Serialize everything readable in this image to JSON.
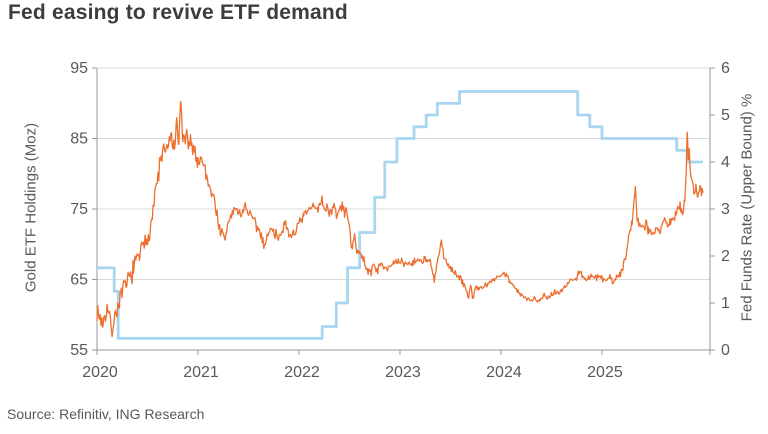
{
  "title": "Fed easing to revive ETF demand",
  "source": "Source: Refinitiv, ING Research",
  "colors": {
    "title_text": "#3d3d3d",
    "axis_text": "#595959",
    "gridline": "#d9d9d9",
    "axis_line": "#999999",
    "gold_series": "#EC6F2D",
    "fed_series": "#A8D5F0",
    "background": "#ffffff"
  },
  "chart_data": {
    "type": "line",
    "title": "Fed easing to revive ETF demand",
    "grid": "horizontal",
    "legend": "none",
    "x_axis": {
      "ticks": [
        2020,
        2021,
        2022,
        2023,
        2024,
        2025
      ],
      "range": [
        2020.0,
        2026.07
      ],
      "end_tick": true
    },
    "left_axis": {
      "label": "Gold ETF Holdings (Moz)",
      "ticks": [
        55,
        65,
        75,
        85,
        95
      ],
      "range": [
        55,
        95
      ]
    },
    "right_axis": {
      "label": "Fed Funds Rate (Upper Bound) %",
      "ticks": [
        0,
        1,
        2,
        3,
        4,
        5,
        6
      ],
      "range": [
        0,
        6
      ]
    },
    "series": [
      {
        "name": "Gold ETF Holdings (Moz)",
        "axis": "left",
        "color": "#EC6F2D",
        "style": "noisy-line",
        "points": [
          [
            2020.0,
            60.5
          ],
          [
            2020.06,
            58.8
          ],
          [
            2020.1,
            61.0
          ],
          [
            2020.15,
            57.8
          ],
          [
            2020.19,
            60.5
          ],
          [
            2020.24,
            62.8
          ],
          [
            2020.3,
            64.5
          ],
          [
            2020.36,
            66.5
          ],
          [
            2020.42,
            68.5
          ],
          [
            2020.46,
            69.5
          ],
          [
            2020.5,
            71.0
          ],
          [
            2020.54,
            73.5
          ],
          [
            2020.58,
            77.5
          ],
          [
            2020.62,
            81.0
          ],
          [
            2020.66,
            83.5
          ],
          [
            2020.7,
            83.0
          ],
          [
            2020.73,
            85.5
          ],
          [
            2020.76,
            83.5
          ],
          [
            2020.79,
            86.5
          ],
          [
            2020.81,
            84.0
          ],
          [
            2020.83,
            90.5
          ],
          [
            2020.85,
            84.5
          ],
          [
            2020.88,
            85.5
          ],
          [
            2020.91,
            83.5
          ],
          [
            2020.94,
            84.5
          ],
          [
            2020.97,
            83.0
          ],
          [
            2021.0,
            81.5
          ],
          [
            2021.03,
            82.5
          ],
          [
            2021.07,
            80.5
          ],
          [
            2021.11,
            78.5
          ],
          [
            2021.15,
            77.0
          ],
          [
            2021.19,
            74.0
          ],
          [
            2021.23,
            71.5
          ],
          [
            2021.26,
            70.5
          ],
          [
            2021.3,
            73.0
          ],
          [
            2021.34,
            74.5
          ],
          [
            2021.38,
            75.0
          ],
          [
            2021.42,
            74.0
          ],
          [
            2021.46,
            75.5
          ],
          [
            2021.5,
            74.5
          ],
          [
            2021.54,
            73.5
          ],
          [
            2021.58,
            72.5
          ],
          [
            2021.62,
            71.5
          ],
          [
            2021.66,
            70.0
          ],
          [
            2021.7,
            71.5
          ],
          [
            2021.74,
            72.5
          ],
          [
            2021.78,
            70.8
          ],
          [
            2021.82,
            72.0
          ],
          [
            2021.86,
            72.5
          ],
          [
            2021.9,
            71.0
          ],
          [
            2021.95,
            71.8
          ],
          [
            2022.0,
            72.5
          ],
          [
            2022.05,
            74.0
          ],
          [
            2022.1,
            74.8
          ],
          [
            2022.14,
            75.5
          ],
          [
            2022.18,
            75.0
          ],
          [
            2022.22,
            76.2
          ],
          [
            2022.26,
            75.3
          ],
          [
            2022.3,
            74.6
          ],
          [
            2022.34,
            75.2
          ],
          [
            2022.38,
            74.2
          ],
          [
            2022.42,
            75.3
          ],
          [
            2022.46,
            74.6
          ],
          [
            2022.5,
            73.3
          ],
          [
            2022.52,
            68.8
          ],
          [
            2022.55,
            70.8
          ],
          [
            2022.58,
            69.3
          ],
          [
            2022.62,
            68.2
          ],
          [
            2022.66,
            67.0
          ],
          [
            2022.7,
            65.9
          ],
          [
            2022.74,
            67.0
          ],
          [
            2022.78,
            66.4
          ],
          [
            2022.82,
            67.2
          ],
          [
            2022.86,
            66.8
          ],
          [
            2022.92,
            67.0
          ],
          [
            2022.96,
            67.3
          ],
          [
            2023.0,
            67.5
          ],
          [
            2023.08,
            67.2
          ],
          [
            2023.16,
            67.6
          ],
          [
            2023.24,
            67.9
          ],
          [
            2023.3,
            67.4
          ],
          [
            2023.34,
            64.6
          ],
          [
            2023.37,
            67.6
          ],
          [
            2023.41,
            70.2
          ],
          [
            2023.44,
            67.8
          ],
          [
            2023.5,
            66.8
          ],
          [
            2023.54,
            66.0
          ],
          [
            2023.58,
            65.2
          ],
          [
            2023.64,
            64.3
          ],
          [
            2023.68,
            62.2
          ],
          [
            2023.7,
            64.4
          ],
          [
            2023.72,
            62.3
          ],
          [
            2023.75,
            64.0
          ],
          [
            2023.79,
            63.6
          ],
          [
            2023.83,
            63.9
          ],
          [
            2023.88,
            64.4
          ],
          [
            2023.92,
            64.9
          ],
          [
            2023.96,
            65.3
          ],
          [
            2024.0,
            65.6
          ],
          [
            2024.03,
            66.1
          ],
          [
            2024.08,
            65.0
          ],
          [
            2024.13,
            64.0
          ],
          [
            2024.17,
            63.2
          ],
          [
            2024.21,
            62.7
          ],
          [
            2024.25,
            62.2
          ],
          [
            2024.29,
            61.9
          ],
          [
            2024.33,
            62.4
          ],
          [
            2024.38,
            62.1
          ],
          [
            2024.42,
            62.7
          ],
          [
            2024.46,
            62.4
          ],
          [
            2024.5,
            63.0
          ],
          [
            2024.54,
            63.3
          ],
          [
            2024.58,
            63.1
          ],
          [
            2024.62,
            63.8
          ],
          [
            2024.66,
            64.3
          ],
          [
            2024.7,
            65.2
          ],
          [
            2024.74,
            64.9
          ],
          [
            2024.78,
            66.3
          ],
          [
            2024.82,
            65.3
          ],
          [
            2024.86,
            64.9
          ],
          [
            2024.9,
            65.6
          ],
          [
            2024.95,
            65.1
          ],
          [
            2025.0,
            65.4
          ],
          [
            2025.04,
            64.9
          ],
          [
            2025.08,
            65.3
          ],
          [
            2025.12,
            64.8
          ],
          [
            2025.16,
            65.5
          ],
          [
            2025.2,
            66.3
          ],
          [
            2025.24,
            68.5
          ],
          [
            2025.27,
            71.5
          ],
          [
            2025.3,
            73.2
          ],
          [
            2025.33,
            78.6
          ],
          [
            2025.35,
            73.3
          ],
          [
            2025.38,
            73.0
          ],
          [
            2025.41,
            72.0
          ],
          [
            2025.44,
            73.4
          ],
          [
            2025.46,
            71.8
          ],
          [
            2025.5,
            71.6
          ],
          [
            2025.54,
            72.3
          ],
          [
            2025.58,
            72.0
          ],
          [
            2025.62,
            73.7
          ],
          [
            2025.65,
            72.4
          ],
          [
            2025.68,
            73.2
          ],
          [
            2025.72,
            73.8
          ],
          [
            2025.75,
            74.8
          ],
          [
            2025.78,
            75.2
          ],
          [
            2025.8,
            74.6
          ],
          [
            2025.82,
            76.5
          ],
          [
            2025.835,
            80.5
          ],
          [
            2025.845,
            86.3
          ],
          [
            2025.855,
            82.0
          ],
          [
            2025.865,
            84.0
          ],
          [
            2025.875,
            80.0
          ],
          [
            2025.89,
            79.0
          ],
          [
            2025.91,
            77.0
          ],
          [
            2025.93,
            78.3
          ],
          [
            2025.95,
            76.3
          ],
          [
            2025.97,
            78.0
          ],
          [
            2026.0,
            77.3
          ]
        ],
        "volatility_profile": [
          [
            2020.0,
            1.0
          ],
          [
            2020.6,
            1.3
          ],
          [
            2021.0,
            1.1
          ],
          [
            2021.5,
            0.8
          ],
          [
            2022.0,
            0.8
          ],
          [
            2022.5,
            0.7
          ],
          [
            2022.8,
            0.5
          ],
          [
            2023.0,
            0.45
          ],
          [
            2023.5,
            0.5
          ],
          [
            2024.0,
            0.3
          ],
          [
            2024.8,
            0.35
          ],
          [
            2025.2,
            0.6
          ],
          [
            2025.5,
            0.6
          ],
          [
            2025.8,
            0.8
          ],
          [
            2026.0,
            0.7
          ]
        ]
      },
      {
        "name": "Fed Funds Rate (Upper Bound) %",
        "axis": "right",
        "color": "#A8D5F0",
        "style": "step-line",
        "points": [
          [
            2020.0,
            1.75
          ],
          [
            2020.17,
            1.25
          ],
          [
            2020.21,
            0.25
          ],
          [
            2022.23,
            0.5
          ],
          [
            2022.37,
            1.0
          ],
          [
            2022.48,
            1.75
          ],
          [
            2022.6,
            2.5
          ],
          [
            2022.75,
            3.25
          ],
          [
            2022.85,
            4.0
          ],
          [
            2022.97,
            4.5
          ],
          [
            2023.14,
            4.75
          ],
          [
            2023.26,
            5.0
          ],
          [
            2023.37,
            5.25
          ],
          [
            2023.59,
            5.5
          ],
          [
            2024.76,
            5.0
          ],
          [
            2024.88,
            4.75
          ],
          [
            2025.0,
            4.5
          ],
          [
            2025.74,
            4.25
          ],
          [
            2025.85,
            4.0
          ],
          [
            2026.0,
            4.0
          ]
        ]
      }
    ]
  }
}
